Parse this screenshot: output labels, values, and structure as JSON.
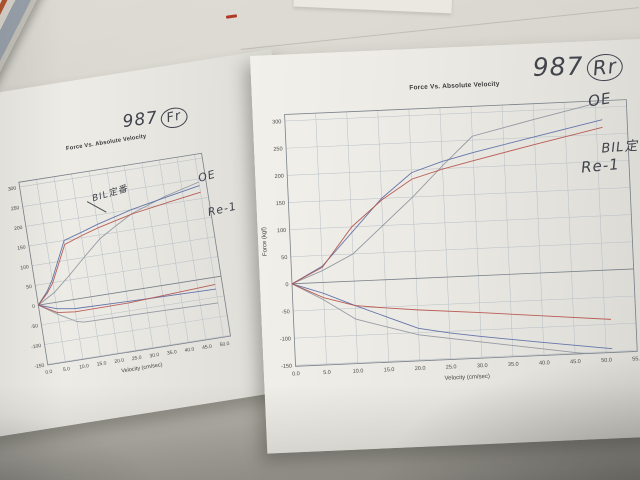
{
  "scene": {
    "props": {
      "magazine_stack": "magazine-stack",
      "paper_corner": "paper-corner",
      "red_pen_dash": "red-pen-dash",
      "red_pen_dot": "red-pen-dot",
      "pencil_mark": "pencil-mark",
      "dark_object": "dark-object-edge"
    },
    "colors": {
      "desk": "#c7c5bd",
      "paper": "#eeede7",
      "pencil": "#41434d",
      "series_oe": "#8e929e",
      "series_bil": "#5a6da6",
      "series_re1": "#b5524c"
    }
  },
  "papers": {
    "left": {
      "handwritten": {
        "number": "987",
        "circled": "Fr",
        "labels": {
          "oe": "OE",
          "bil": "BIL定番",
          "re1": "Re-1"
        }
      }
    },
    "right": {
      "handwritten": {
        "number": "987",
        "circled": "Rr",
        "labels": {
          "oe": "OE",
          "bil": "BIL定番",
          "re1": "Re-1"
        }
      }
    }
  },
  "chart_data": [
    {
      "type": "line",
      "paper": "left",
      "title": "Force Vs. Absolute Velocity",
      "xlabel": "Velocity (cm/sec)",
      "ylabel": "Force (kgf)",
      "xlim": [
        0,
        52
      ],
      "ylim": [
        -150,
        300
      ],
      "x_ticks": [
        0,
        5,
        10,
        15,
        20,
        25,
        30,
        35,
        40,
        45,
        50
      ],
      "y_ticks": [
        300,
        250,
        200,
        150,
        100,
        50,
        0,
        -50,
        -100,
        -150
      ],
      "grid": true,
      "legend": "handwritten annotations only",
      "series": [
        {
          "name": "OE (upper)",
          "color": "#8e929e",
          "points": [
            [
              0,
              0
            ],
            [
              5,
              25
            ],
            [
              10,
              62
            ],
            [
              15,
              102
            ],
            [
              20,
              140
            ],
            [
              25,
              166
            ],
            [
              30,
              190
            ],
            [
              40,
              220
            ],
            [
              50,
              242
            ]
          ]
        },
        {
          "name": "BIL定番 (upper)",
          "color": "#5a6da6",
          "points": [
            [
              0,
              0
            ],
            [
              3,
              30
            ],
            [
              5,
              58
            ],
            [
              10,
              150
            ],
            [
              15,
              163
            ],
            [
              20,
              177
            ],
            [
              30,
              200
            ],
            [
              40,
              217
            ],
            [
              50,
              233
            ]
          ]
        },
        {
          "name": "Re-1 (upper)",
          "color": "#b5524c",
          "points": [
            [
              0,
              0
            ],
            [
              3,
              26
            ],
            [
              5,
              50
            ],
            [
              10,
              140
            ],
            [
              15,
              155
            ],
            [
              20,
              168
            ],
            [
              30,
              189
            ],
            [
              40,
              203
            ],
            [
              50,
              216
            ]
          ]
        },
        {
          "name": "OE (lower)",
          "color": "#8e929e",
          "points": [
            [
              0,
              0
            ],
            [
              5,
              -30
            ],
            [
              10,
              -56
            ],
            [
              12,
              -60
            ],
            [
              30,
              -62
            ],
            [
              50,
              -65
            ]
          ]
        },
        {
          "name": "BIL定番 (lower)",
          "color": "#5a6da6",
          "points": [
            [
              0,
              0
            ],
            [
              5,
              -16
            ],
            [
              10,
              -23
            ],
            [
              30,
              -27
            ],
            [
              50,
              -30
            ]
          ]
        },
        {
          "name": "Re-1 (lower)",
          "color": "#b5524c",
          "points": [
            [
              0,
              0
            ],
            [
              5,
              -26
            ],
            [
              10,
              -31
            ],
            [
              25,
              -30
            ],
            [
              50,
              -18
            ]
          ]
        }
      ]
    },
    {
      "type": "line",
      "paper": "right",
      "title": "Force Vs. Absolute Velocity",
      "xlabel": "Velocity (cm/sec)",
      "ylabel": "Force (kgf)",
      "xlim": [
        0,
        55
      ],
      "ylim": [
        -150,
        300
      ],
      "x_ticks": [
        0,
        5,
        10,
        15,
        20,
        25,
        30,
        35,
        40,
        45,
        50,
        55
      ],
      "y_ticks": [
        300,
        250,
        200,
        150,
        100,
        50,
        0,
        -50,
        -100,
        -150
      ],
      "grid": true,
      "legend": "handwritten annotations only",
      "series": [
        {
          "name": "OE (upper)",
          "color": "#8e929e",
          "points": [
            [
              0,
              0
            ],
            [
              5,
              22
            ],
            [
              10,
              50
            ],
            [
              15,
              100
            ],
            [
              20,
              150
            ],
            [
              25,
              205
            ],
            [
              30,
              257
            ],
            [
              40,
              283
            ],
            [
              51,
              310
            ]
          ]
        },
        {
          "name": "BIL定番 (upper)",
          "color": "#5a6da6",
          "points": [
            [
              0,
              0
            ],
            [
              5,
              30
            ],
            [
              10,
              90
            ],
            [
              15,
              150
            ],
            [
              20,
              195
            ],
            [
              25,
              213
            ],
            [
              30,
              227
            ],
            [
              40,
              251
            ],
            [
              51,
              277
            ]
          ]
        },
        {
          "name": "Re-1 (upper)",
          "color": "#b5524c",
          "points": [
            [
              0,
              0
            ],
            [
              5,
              28
            ],
            [
              10,
              100
            ],
            [
              15,
              147
            ],
            [
              20,
              183
            ],
            [
              25,
              199
            ],
            [
              30,
              212
            ],
            [
              40,
              237
            ],
            [
              51,
              263
            ]
          ]
        },
        {
          "name": "OE (lower)",
          "color": "#8e929e",
          "points": [
            [
              0,
              0
            ],
            [
              5,
              -32
            ],
            [
              10,
              -70
            ],
            [
              20,
              -104
            ],
            [
              30,
              -122
            ],
            [
              40,
              -140
            ],
            [
              51,
              -160
            ]
          ]
        },
        {
          "name": "BIL定番 (lower)",
          "color": "#5a6da6",
          "points": [
            [
              0,
              0
            ],
            [
              5,
              -20
            ],
            [
              10,
              -45
            ],
            [
              20,
              -92
            ],
            [
              25,
              -103
            ],
            [
              30,
              -112
            ],
            [
              40,
              -128
            ],
            [
              51,
              -145
            ]
          ]
        },
        {
          "name": "Re-1 (lower)",
          "color": "#b5524c",
          "points": [
            [
              0,
              0
            ],
            [
              5,
              -28
            ],
            [
              10,
              -45
            ],
            [
              15,
              -52
            ],
            [
              20,
              -58
            ],
            [
              30,
              -68
            ],
            [
              40,
              -79
            ],
            [
              51,
              -91
            ]
          ]
        }
      ]
    }
  ]
}
